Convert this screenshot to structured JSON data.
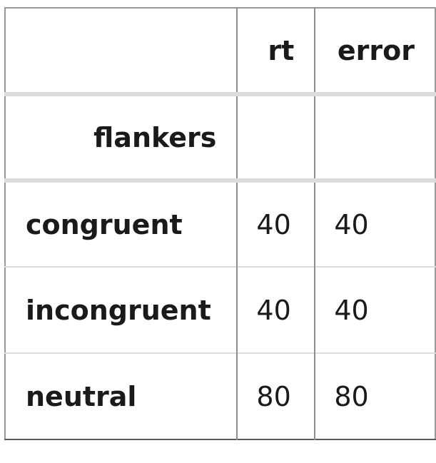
{
  "table": {
    "columns": [
      "rt",
      "error"
    ],
    "index_name": "flankers",
    "rows": [
      {
        "label": "congruent",
        "rt": "40",
        "error": "40"
      },
      {
        "label": "incongruent",
        "rt": "40",
        "error": "40"
      },
      {
        "label": "neutral",
        "rt": "80",
        "error": "80"
      }
    ]
  }
}
